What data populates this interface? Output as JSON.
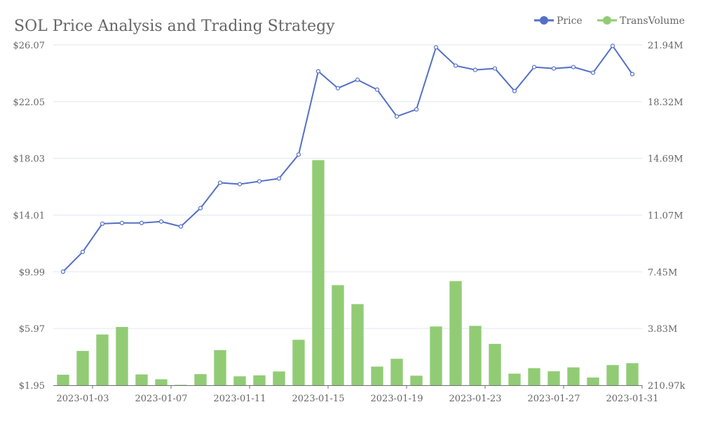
{
  "chart_data": {
    "type": "bar+line",
    "title": "SOL Price Analysis and Trading Strategy",
    "legend": {
      "position": "top-right",
      "items": [
        "Price",
        "TransVolume"
      ]
    },
    "colors": {
      "price": "#5470c6",
      "volume": "#91cc75"
    },
    "x": [
      "2023-01-02",
      "2023-01-03",
      "2023-01-04",
      "2023-01-05",
      "2023-01-06",
      "2023-01-07",
      "2023-01-08",
      "2023-01-09",
      "2023-01-10",
      "2023-01-11",
      "2023-01-12",
      "2023-01-13",
      "2023-01-14",
      "2023-01-15",
      "2023-01-16",
      "2023-01-17",
      "2023-01-18",
      "2023-01-19",
      "2023-01-20",
      "2023-01-21",
      "2023-01-22",
      "2023-01-23",
      "2023-01-24",
      "2023-01-25",
      "2023-01-26",
      "2023-01-27",
      "2023-01-28",
      "2023-01-29",
      "2023-01-30",
      "2023-01-31"
    ],
    "x_tick_labels": [
      "2023-01-03",
      "2023-01-07",
      "2023-01-11",
      "2023-01-15",
      "2023-01-19",
      "2023-01-23",
      "2023-01-27",
      "2023-01-31"
    ],
    "y_left": {
      "ticks": [
        "$1.95",
        "$5.97",
        "$9.99",
        "$14.01",
        "$18.03",
        "$22.05",
        "$26.07"
      ],
      "range": [
        1.95,
        26.07
      ]
    },
    "y_right": {
      "ticks": [
        "210.97k",
        "3.83M",
        "7.45M",
        "11.07M",
        "14.69M",
        "18.32M",
        "21.94M"
      ],
      "range": [
        210970,
        21940000
      ]
    },
    "series": [
      {
        "name": "Price",
        "axis": "left",
        "type": "line",
        "values": [
          10.0,
          11.4,
          13.4,
          13.45,
          13.45,
          13.55,
          13.2,
          14.5,
          16.3,
          16.2,
          16.4,
          16.6,
          18.3,
          24.2,
          23.0,
          23.6,
          22.9,
          21.0,
          21.5,
          25.9,
          24.6,
          24.3,
          24.4,
          22.8,
          24.5,
          24.4,
          24.5,
          24.1,
          26.0,
          24.0
        ]
      },
      {
        "name": "TransVolume",
        "axis": "right",
        "type": "bar",
        "values": [
          880000,
          2400000,
          3450000,
          3930000,
          900000,
          590000,
          210970,
          920000,
          2450000,
          780000,
          840000,
          1090000,
          3110000,
          14580000,
          6600000,
          5390000,
          1400000,
          1900000,
          820000,
          3960000,
          6860000,
          4000000,
          2850000,
          950000,
          1300000,
          1100000,
          1350000,
          700000,
          1500000,
          1620000
        ]
      }
    ]
  }
}
